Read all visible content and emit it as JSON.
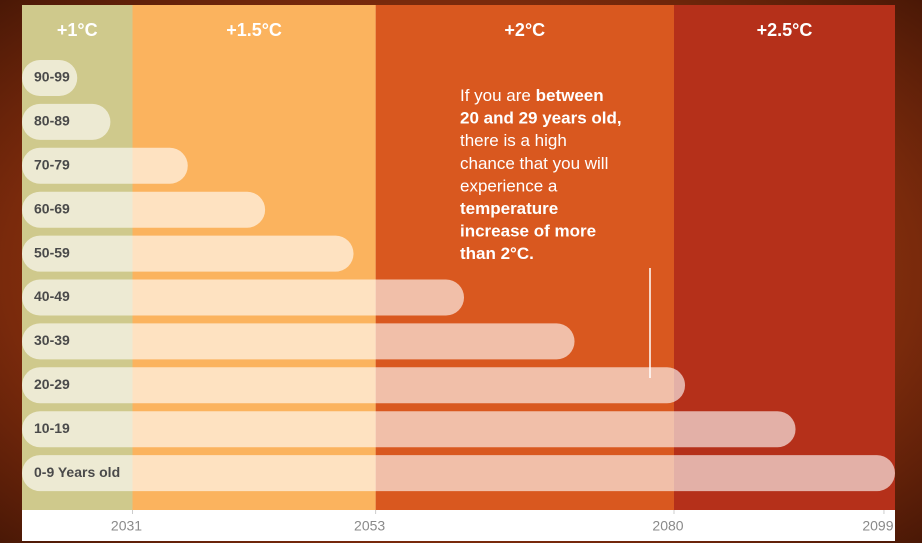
{
  "chart_data": {
    "type": "bar",
    "orientation": "horizontal",
    "categories": [
      "90-99",
      "80-89",
      "70-79",
      "60-69",
      "50-59",
      "40-49",
      "30-39",
      "20-29",
      "10-19",
      "0-9 Years old"
    ],
    "values": [
      2026,
      2029,
      2036,
      2043,
      2051,
      2061,
      2071,
      2081,
      2091,
      2100
    ],
    "color": "rgba(255,255,255,0.62)",
    "xlim": [
      2021,
      2100
    ],
    "xticks": [
      2031,
      2053,
      2080,
      2099
    ],
    "bands": [
      {
        "name": "+1°C",
        "color": "#cfc98c",
        "from": 2021,
        "to": 2031
      },
      {
        "name": "+1.5°C",
        "color": "#fbb35e",
        "from": 2031,
        "to": 2053
      },
      {
        "name": "+2°C",
        "color": "#d9581f",
        "from": 2053,
        "to": 2080
      },
      {
        "name": "+2.5°C",
        "color": "#b5301a",
        "from": 2080,
        "to": 2100
      }
    ],
    "annotation": [
      [
        {
          "text": "If you are ",
          "bold": false
        },
        {
          "text": "between",
          "bold": true
        }
      ],
      [
        {
          "text": "20 and 29 years old,",
          "bold": true
        }
      ],
      [
        {
          "text": "there is a high",
          "bold": false
        }
      ],
      [
        {
          "text": "chance that you will",
          "bold": false
        }
      ],
      [
        {
          "text": "experience a",
          "bold": false
        }
      ],
      [
        {
          "text": "temperature",
          "bold": true
        }
      ],
      [
        {
          "text": "increase of more",
          "bold": true
        }
      ],
      [
        {
          "text": "than 2°C.",
          "bold": true
        }
      ]
    ]
  }
}
